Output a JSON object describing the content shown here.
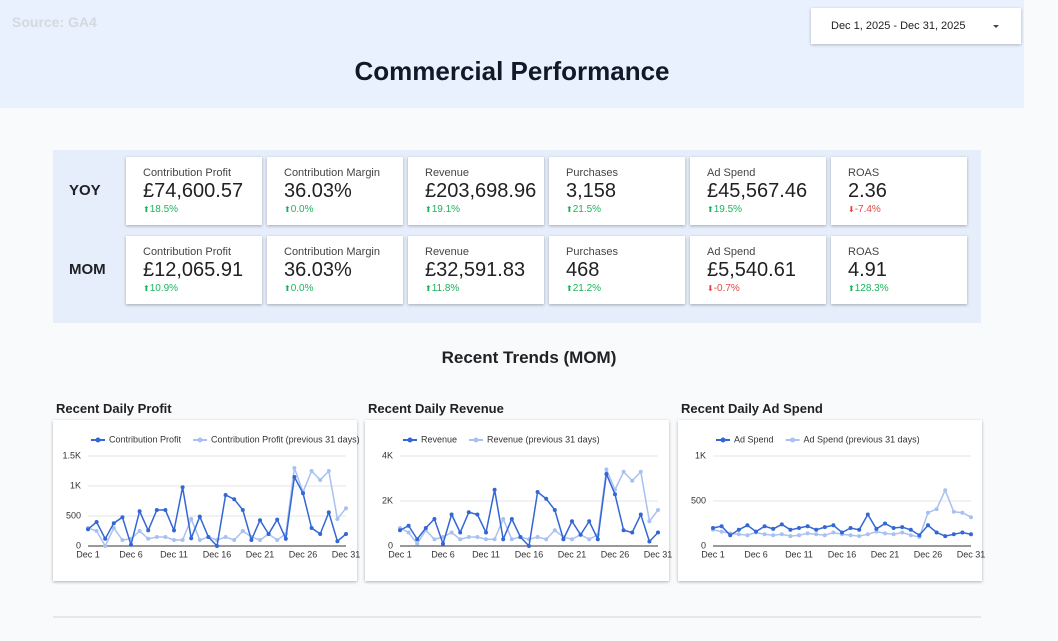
{
  "header": {
    "source": "Source: GA4",
    "date_range": "Dec 1, 2025 - Dec 31, 2025",
    "title": "Commercial Performance"
  },
  "kpis": {
    "rows": [
      {
        "label": "YOY",
        "cards": [
          {
            "label": "Contribution Profit",
            "value": "£74,600.57",
            "change": "18.5%",
            "direction": "up"
          },
          {
            "label": "Contribution Margin",
            "value": "36.03%",
            "change": "0.0%",
            "direction": "up"
          },
          {
            "label": "Revenue",
            "value": "£203,698.96",
            "change": "19.1%",
            "direction": "up"
          },
          {
            "label": "Purchases",
            "value": "3,158",
            "change": "21.5%",
            "direction": "up"
          },
          {
            "label": "Ad Spend",
            "value": "£45,567.46",
            "change": "19.5%",
            "direction": "up"
          },
          {
            "label": "ROAS",
            "value": "2.36",
            "change": "-7.4%",
            "direction": "down"
          }
        ]
      },
      {
        "label": "MOM",
        "cards": [
          {
            "label": "Contribution Profit",
            "value": "£12,065.91",
            "change": "10.9%",
            "direction": "up"
          },
          {
            "label": "Contribution Margin",
            "value": "36.03%",
            "change": "0.0%",
            "direction": "up"
          },
          {
            "label": "Revenue",
            "value": "£32,591.83",
            "change": "11.8%",
            "direction": "up"
          },
          {
            "label": "Purchases",
            "value": "468",
            "change": "21.2%",
            "direction": "up"
          },
          {
            "label": "Ad Spend",
            "value": "£5,540.61",
            "change": "-0.7%",
            "direction": "down"
          },
          {
            "label": "ROAS",
            "value": "4.91",
            "change": "128.3%",
            "direction": "up"
          }
        ]
      }
    ]
  },
  "section_title": "Recent Trends (MOM)",
  "chart_data": [
    {
      "type": "line",
      "title": "Recent Daily Profit",
      "categories": [
        "Dec 1",
        null,
        null,
        null,
        null,
        "Dec 6",
        null,
        null,
        null,
        null,
        "Dec 11",
        null,
        null,
        null,
        null,
        "Dec 16",
        null,
        null,
        null,
        null,
        "Dec 21",
        null,
        null,
        null,
        null,
        "Dec 26",
        null,
        null,
        null,
        null,
        "Dec 31"
      ],
      "series": [
        {
          "name": "Contribution Profit",
          "color": "#3366d6",
          "values": [
            280,
            400,
            120,
            380,
            480,
            20,
            580,
            260,
            600,
            600,
            260,
            980,
            130,
            490,
            150,
            0,
            850,
            780,
            600,
            100,
            430,
            200,
            440,
            120,
            1150,
            880,
            300,
            200,
            560,
            80,
            200
          ]
        },
        {
          "name": "Contribution Profit (previous 31 days)",
          "color": "#a9c1f1",
          "values": [
            300,
            250,
            0,
            300,
            100,
            120,
            250,
            120,
            150,
            150,
            100,
            100,
            450,
            100,
            150,
            100,
            150,
            100,
            250,
            150,
            100,
            200,
            100,
            200,
            1300,
            900,
            1250,
            1100,
            1250,
            450,
            630
          ]
        }
      ],
      "ylim": [
        0,
        1500
      ],
      "yticks": [
        0,
        500,
        {
          "value": 1000,
          "label": "1K"
        },
        {
          "value": 1500,
          "label": "1.5K"
        }
      ],
      "grid": true
    },
    {
      "type": "line",
      "title": "Recent Daily Revenue",
      "categories": [
        "Dec 1",
        null,
        null,
        null,
        null,
        "Dec 6",
        null,
        null,
        null,
        null,
        "Dec 11",
        null,
        null,
        null,
        null,
        "Dec 16",
        null,
        null,
        null,
        null,
        "Dec 21",
        null,
        null,
        null,
        null,
        "Dec 26",
        null,
        null,
        null,
        null,
        "Dec 31"
      ],
      "series": [
        {
          "name": "Revenue",
          "color": "#3366d6",
          "values": [
            700,
            900,
            300,
            800,
            1200,
            100,
            1400,
            600,
            1500,
            1400,
            600,
            2500,
            300,
            1200,
            400,
            0,
            2400,
            2100,
            1600,
            300,
            1100,
            500,
            1100,
            300,
            3200,
            2300,
            700,
            600,
            1400,
            200,
            600
          ]
        },
        {
          "name": "Revenue (previous 31 days)",
          "color": "#a9c1f1",
          "values": [
            800,
            600,
            100,
            700,
            300,
            400,
            600,
            300,
            400,
            400,
            300,
            300,
            1200,
            300,
            400,
            300,
            400,
            300,
            700,
            400,
            300,
            500,
            300,
            500,
            3400,
            2500,
            3300,
            2900,
            3300,
            1100,
            1600
          ]
        }
      ],
      "ylim": [
        0,
        4000
      ],
      "yticks": [
        0,
        {
          "value": 2000,
          "label": "2K"
        },
        {
          "value": 4000,
          "label": "4K"
        }
      ],
      "grid": true
    },
    {
      "type": "line",
      "title": "Recent Daily Ad Spend",
      "categories": [
        "Dec 1",
        null,
        null,
        null,
        null,
        "Dec 6",
        null,
        null,
        null,
        null,
        "Dec 11",
        null,
        null,
        null,
        null,
        "Dec 16",
        null,
        null,
        null,
        null,
        "Dec 21",
        null,
        null,
        null,
        null,
        "Dec 26",
        null,
        null,
        null,
        null,
        "Dec 31"
      ],
      "series": [
        {
          "name": "Ad Spend",
          "color": "#3366d6",
          "values": [
            200,
            220,
            120,
            180,
            230,
            160,
            220,
            190,
            240,
            180,
            200,
            220,
            180,
            210,
            230,
            150,
            200,
            180,
            350,
            190,
            250,
            200,
            210,
            180,
            120,
            230,
            150,
            110,
            130,
            150,
            130
          ]
        },
        {
          "name": "Ad Spend (previous 31 days)",
          "color": "#a9c1f1",
          "values": [
            180,
            160,
            140,
            130,
            120,
            150,
            130,
            120,
            130,
            110,
            120,
            140,
            130,
            120,
            150,
            130,
            120,
            110,
            130,
            160,
            140,
            130,
            150,
            120,
            100,
            370,
            410,
            620,
            380,
            370,
            320
          ]
        }
      ],
      "ylim": [
        0,
        1000
      ],
      "yticks": [
        0,
        500,
        {
          "value": 1000,
          "label": "1K"
        }
      ],
      "grid": true
    }
  ]
}
